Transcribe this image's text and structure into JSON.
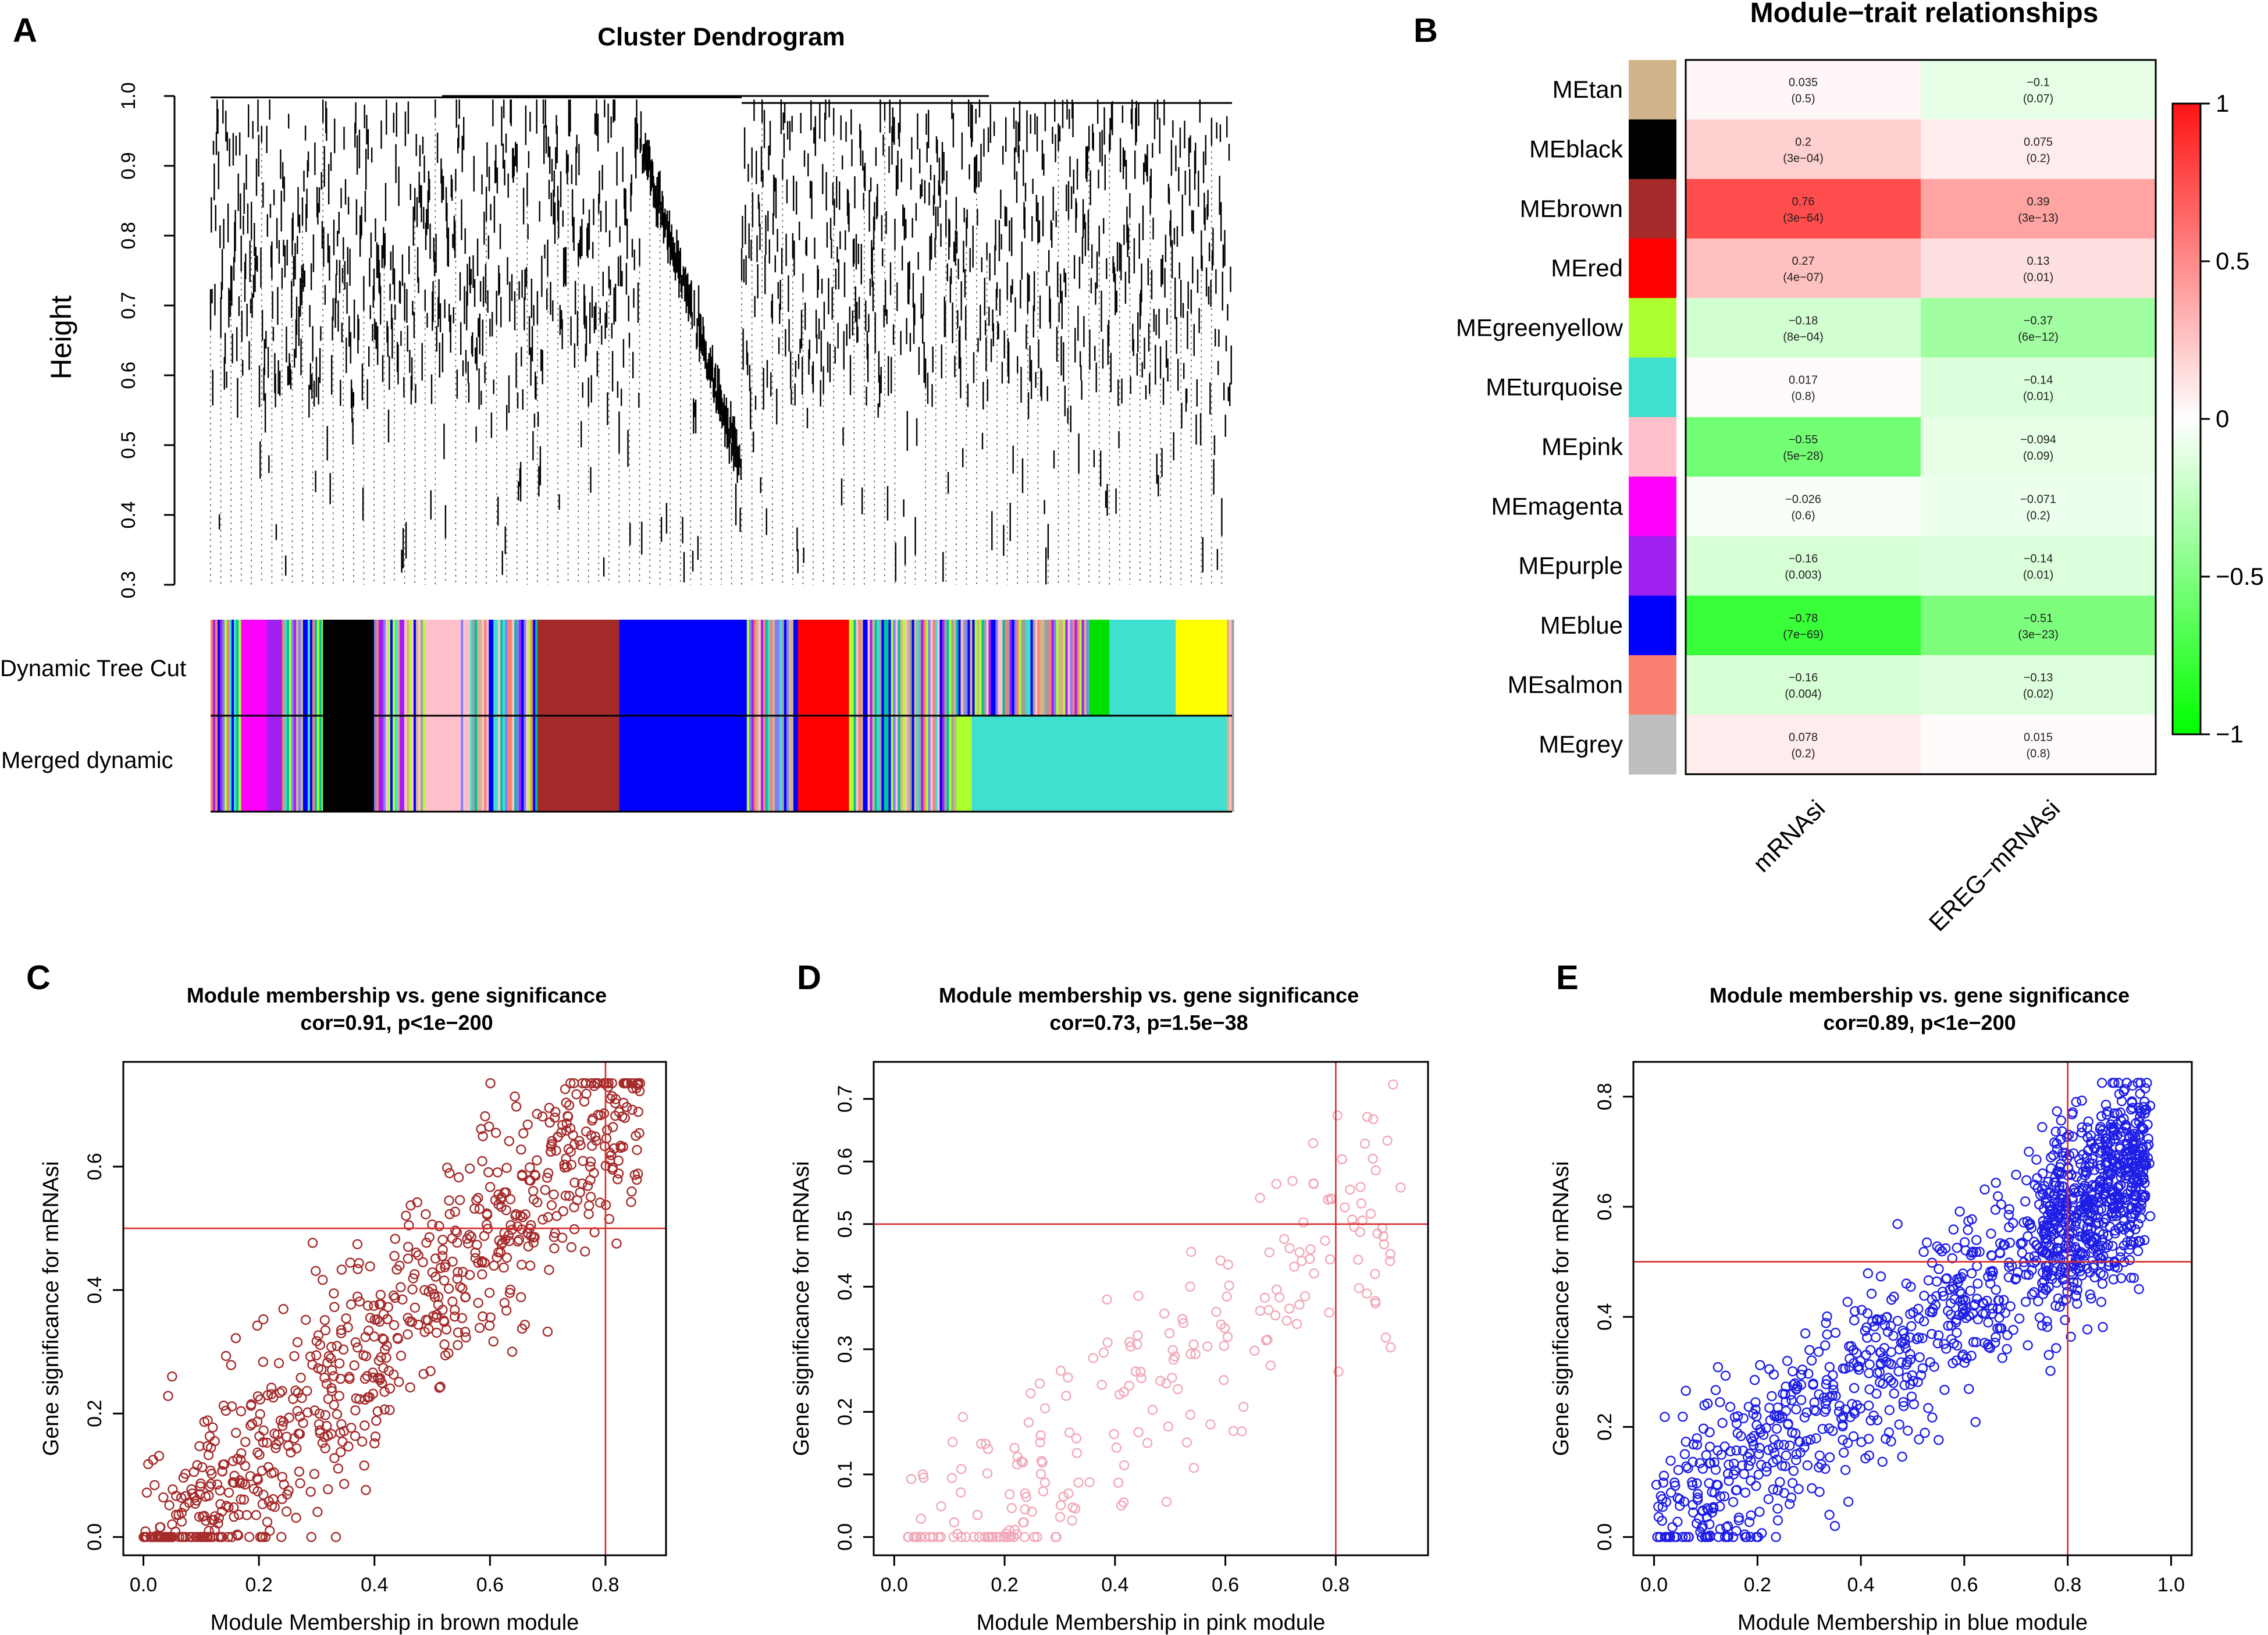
{
  "panels": {
    "A": {
      "letter": "A",
      "title": "Cluster Dendrogram",
      "ylabel": "Height",
      "yticks": [
        "0.3",
        "0.4",
        "0.5",
        "0.6",
        "0.7",
        "0.8",
        "0.9",
        "1.0"
      ],
      "lanes": [
        "Dynamic Tree Cut",
        "Merged dynamic"
      ]
    },
    "B": {
      "letter": "B",
      "title": "Module−trait relationships"
    },
    "C": {
      "letter": "C"
    },
    "D": {
      "letter": "D"
    },
    "E": {
      "letter": "E"
    }
  },
  "colors": {
    "brown": "#a52a2a",
    "pink": "#f2a8b8",
    "blue": "#1e1ee6",
    "threshold": "#d92b2b",
    "tan": "#d2b48c",
    "black": "#000000",
    "brown_module": "#a52a2a",
    "red": "#ff0000",
    "greenyellow": "#adff2f",
    "turquoise": "#40e0d0",
    "pink_module": "#ffc0cb",
    "magenta": "#ff00ff",
    "purple": "#a020f0",
    "blue_module": "#0000ff",
    "salmon": "#fa8072",
    "grey": "#bebebe"
  },
  "chart_data": [
    {
      "type": "dendrogram",
      "title": "Cluster Dendrogram",
      "ylabel": "Height",
      "ylim": [
        0.3,
        1.0
      ],
      "tracks": [
        "Dynamic Tree Cut",
        "Merged dynamic"
      ]
    },
    {
      "type": "heatmap",
      "title": "Module−trait relationships",
      "columns": [
        "mRNAsi",
        "EREG−mRNAsi"
      ],
      "rows": [
        {
          "name": "MEtan",
          "color": "#d2b48c",
          "values": [
            "0.035",
            "−0.1"
          ],
          "pvalues": [
            "(0.5)",
            "(0.07)"
          ],
          "r": [
            0.035,
            -0.1
          ]
        },
        {
          "name": "MEblack",
          "color": "#000000",
          "values": [
            "0.2",
            "0.075"
          ],
          "pvalues": [
            "(3e−04)",
            "(0.2)"
          ],
          "r": [
            0.2,
            0.075
          ]
        },
        {
          "name": "MEbrown",
          "color": "#a52a2a",
          "values": [
            "0.76",
            "0.39"
          ],
          "pvalues": [
            "(3e−64)",
            "(3e−13)"
          ],
          "r": [
            0.76,
            0.39
          ]
        },
        {
          "name": "MEred",
          "color": "#ff0000",
          "values": [
            "0.27",
            "0.13"
          ],
          "pvalues": [
            "(4e−07)",
            "(0.01)"
          ],
          "r": [
            0.27,
            0.13
          ]
        },
        {
          "name": "MEgreenyellow",
          "color": "#adff2f",
          "values": [
            "−0.18",
            "−0.37"
          ],
          "pvalues": [
            "(8e−04)",
            "(6e−12)"
          ],
          "r": [
            -0.18,
            -0.37
          ]
        },
        {
          "name": "MEturquoise",
          "color": "#40e0d0",
          "values": [
            "0.017",
            "−0.14"
          ],
          "pvalues": [
            "(0.8)",
            "(0.01)"
          ],
          "r": [
            0.017,
            -0.14
          ]
        },
        {
          "name": "MEpink",
          "color": "#ffc0cb",
          "values": [
            "−0.55",
            "−0.094"
          ],
          "pvalues": [
            "(5e−28)",
            "(0.09)"
          ],
          "r": [
            -0.55,
            -0.094
          ]
        },
        {
          "name": "MEmagenta",
          "color": "#ff00ff",
          "values": [
            "−0.026",
            "−0.071"
          ],
          "pvalues": [
            "(0.6)",
            "(0.2)"
          ],
          "r": [
            -0.026,
            -0.071
          ]
        },
        {
          "name": "MEpurple",
          "color": "#a020f0",
          "values": [
            "−0.16",
            "−0.14"
          ],
          "pvalues": [
            "(0.003)",
            "(0.01)"
          ],
          "r": [
            -0.16,
            -0.14
          ]
        },
        {
          "name": "MEblue",
          "color": "#0000ff",
          "values": [
            "−0.78",
            "−0.51"
          ],
          "pvalues": [
            "(7e−69)",
            "(3e−23)"
          ],
          "r": [
            -0.78,
            -0.51
          ]
        },
        {
          "name": "MEsalmon",
          "color": "#fa8072",
          "values": [
            "−0.16",
            "−0.13"
          ],
          "pvalues": [
            "(0.004)",
            "(0.02)"
          ],
          "r": [
            -0.16,
            -0.13
          ]
        },
        {
          "name": "MEgrey",
          "color": "#bebebe",
          "values": [
            "0.078",
            "0.015"
          ],
          "pvalues": [
            "(0.2)",
            "(0.8)"
          ],
          "r": [
            0.078,
            0.015
          ]
        }
      ],
      "legend": {
        "ticks": [
          "1",
          "0.5",
          "0",
          "−0.5",
          "−1"
        ],
        "range": [
          -1,
          1
        ]
      }
    },
    {
      "type": "scatter",
      "title": "Module membership vs. gene significance",
      "subtitle": "cor=0.91, p<1e−200",
      "xlabel": "Module Membership in brown module",
      "ylabel": "Gene significance for  mRNAsi",
      "xlim": [
        0,
        0.87
      ],
      "ylim": [
        0,
        0.74
      ],
      "xticks": [
        "0.0",
        "0.2",
        "0.4",
        "0.6",
        "0.8"
      ],
      "yticks": [
        "0.0",
        "0.2",
        "0.4",
        "0.6"
      ],
      "hline": 0.5,
      "vline": 0.8,
      "n": 750,
      "slope": 0.9,
      "intercept": -0.05,
      "noise": 0.085,
      "xmin": 0.0,
      "xmax": 0.86,
      "seed": 7
    },
    {
      "type": "scatter",
      "title": "Module membership vs. gene significance",
      "subtitle": "cor=0.73, p=1.5e−38",
      "xlabel": "Module Membership in pink module",
      "ylabel": "Gene significance for  mRNAsi",
      "xlim": [
        0,
        0.93
      ],
      "ylim": [
        0,
        0.73
      ],
      "xticks": [
        "0.0",
        "0.2",
        "0.4",
        "0.6",
        "0.8"
      ],
      "yticks": [
        "0.0",
        "0.1",
        "0.2",
        "0.3",
        "0.4",
        "0.5",
        "0.6",
        "0.7"
      ],
      "hline": 0.5,
      "vline": 0.8,
      "n": 230,
      "slope": 0.7,
      "intercept": -0.1,
      "noise": 0.095,
      "xmin": 0.02,
      "xmax": 0.92,
      "seed": 13
    },
    {
      "type": "scatter",
      "title": "Module membership vs. gene significance",
      "subtitle": "cor=0.89, p<1e−200",
      "xlabel": "Module Membership in blue module",
      "ylabel": "Gene significance for  mRNAsi",
      "xlim": [
        0,
        1.0
      ],
      "ylim": [
        0,
        0.83
      ],
      "xticks": [
        "0.0",
        "0.2",
        "0.4",
        "0.6",
        "0.8",
        "1.0"
      ],
      "yticks": [
        "0.0",
        "0.2",
        "0.4",
        "0.6",
        "0.8"
      ],
      "hline": 0.5,
      "vline": 0.8,
      "n": 1300,
      "slope": 0.72,
      "intercept": 0.0,
      "noise": 0.085,
      "xmin": 0.0,
      "xmax": 0.96,
      "seed": 21
    }
  ]
}
